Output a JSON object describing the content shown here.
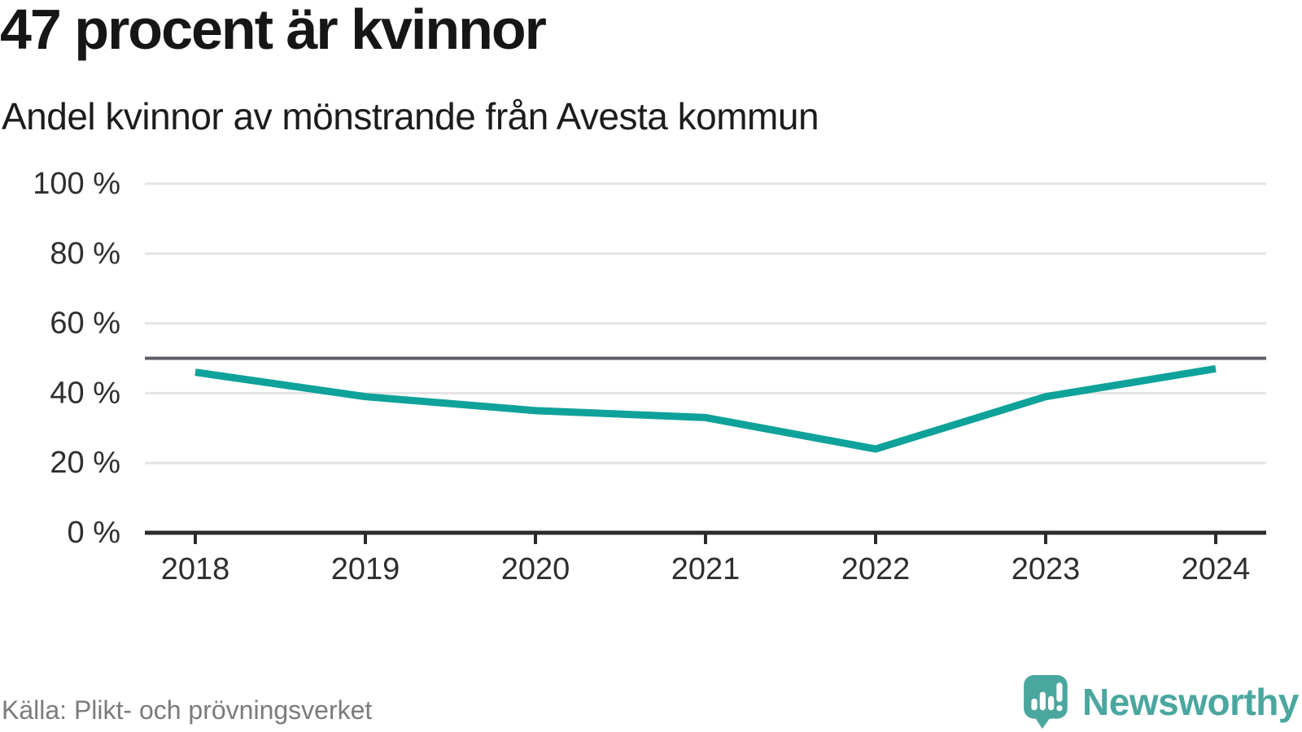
{
  "chart_data": {
    "type": "line",
    "title": "47 procent är kvinnor",
    "subtitle": "Andel kvinnor av mönstrande från Avesta kommun",
    "x": [
      "2018",
      "2019",
      "2020",
      "2021",
      "2022",
      "2023",
      "2024"
    ],
    "series": [
      {
        "name": "Andel kvinnor",
        "values": [
          46,
          39,
          35,
          33,
          24,
          39,
          47
        ]
      }
    ],
    "unit": "%",
    "ylim": [
      0,
      100
    ],
    "ytick_values": [
      0,
      20,
      40,
      60,
      80,
      100
    ],
    "ytick_labels": [
      "0 %",
      "20 %",
      "40 %",
      "60 %",
      "80 %",
      "100 %"
    ],
    "reference_line": 50,
    "grid": "horizontal",
    "legend": "none",
    "xlabel": "",
    "ylabel": ""
  },
  "footer": {
    "source": "Källa: Plikt- och prövningsverket",
    "brand": "Newsworthy"
  },
  "colors": {
    "line": "#0ea29a",
    "reference_line": "#5f6066",
    "gridline": "#e4e4e6",
    "axis": "#2b2b2b",
    "tick_label": "#2e2e2e",
    "source_text": "#7b7b7b",
    "brand": "#4aa79f"
  },
  "icons": {
    "logo": "newsworthy-speech-bubble-bar-chart-icon"
  }
}
